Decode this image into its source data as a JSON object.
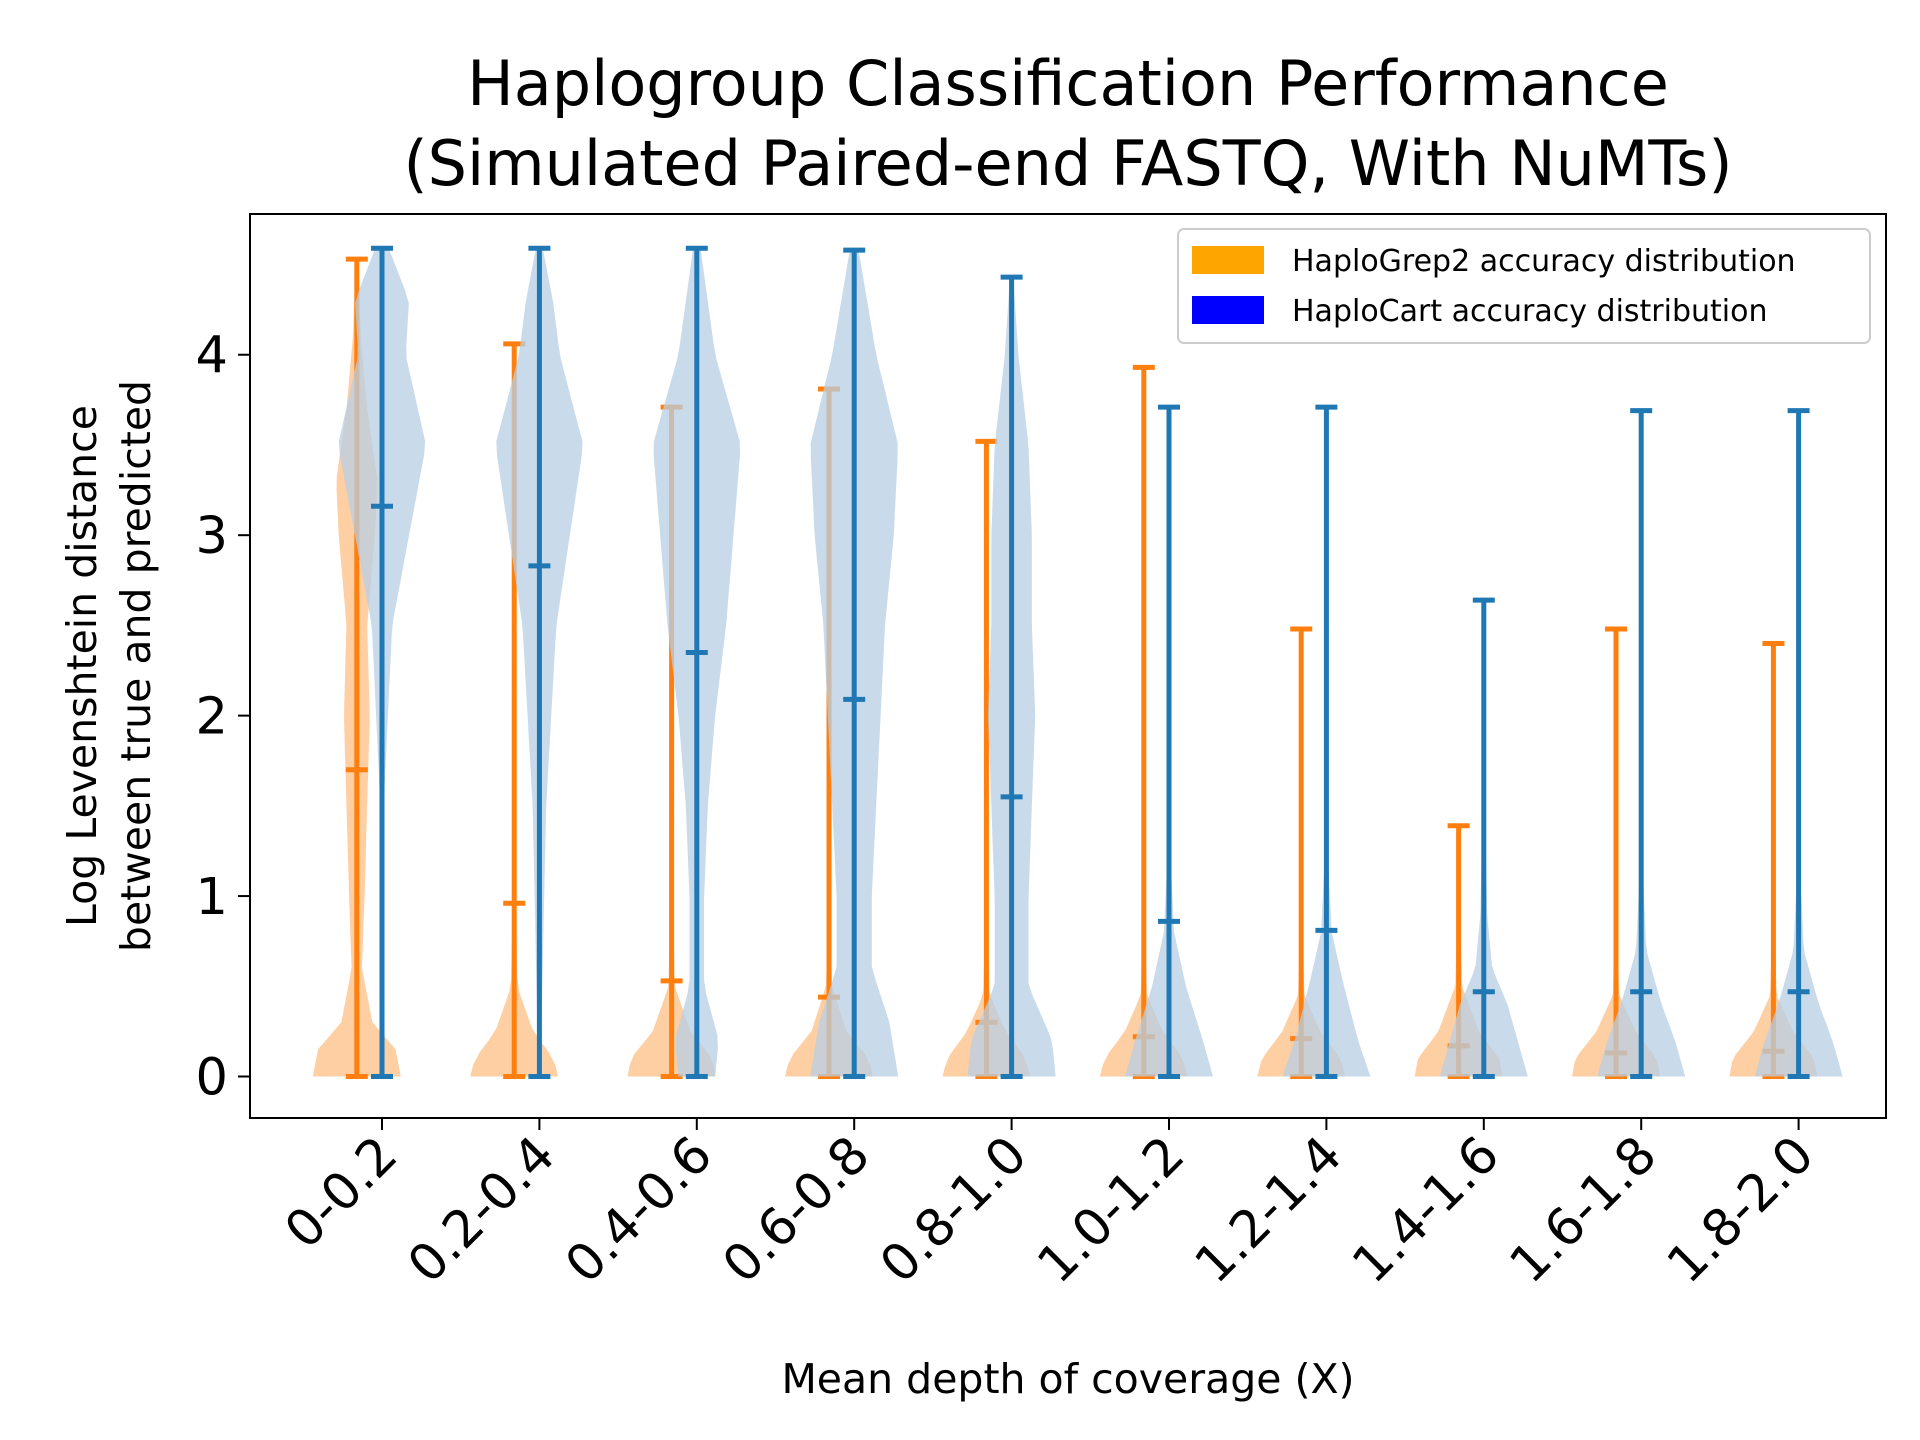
{
  "chart_data": {
    "type": "violin",
    "title": [
      "Haplogroup Classification Performance",
      "(Simulated Paired-end FASTQ, With NuMTs)"
    ],
    "xlabel": "Mean depth of coverage (X)",
    "ylabel": [
      "Log Levenshtein distance",
      "between true and predicted"
    ],
    "ylim": [
      -0.23,
      4.78
    ],
    "yticks": [
      0,
      1,
      2,
      3,
      4
    ],
    "categories": [
      "0-0.2",
      "0.2-0.4",
      "0.4-0.6",
      "0.6-0.8",
      "0.8-1.0",
      "1.0-1.2",
      "1.2-1.4",
      "1.4-1.6",
      "1.6-1.8",
      "1.8-2.0"
    ],
    "legend": {
      "position": "upper right",
      "entries": [
        {
          "label": "HaploGrep2 accuracy distribution",
          "color": "#ffa500"
        },
        {
          "label": "HaploCart accuracy distribution",
          "color": "#0000ff"
        }
      ]
    },
    "series": [
      {
        "name": "HaploGrep2",
        "line_color": "#ff7f0e",
        "fill_color": "#ffbf86",
        "offset": -0.25,
        "min": [
          0,
          0,
          0,
          0,
          0,
          0,
          0,
          0,
          0,
          0
        ],
        "max": [
          4.53,
          4.06,
          3.71,
          3.81,
          3.52,
          3.93,
          2.48,
          1.39,
          2.48,
          2.4
        ],
        "mean": [
          1.7,
          0.96,
          0.53,
          0.44,
          0.3,
          0.22,
          0.21,
          0.17,
          0.13,
          0.14
        ],
        "density_profiles": [
          [
            [
              0,
              0.17
            ],
            [
              0.15,
              0.15
            ],
            [
              0.3,
              0.06
            ],
            [
              0.6,
              0.02
            ],
            [
              1.0,
              0.03
            ],
            [
              1.5,
              0.04
            ],
            [
              2.0,
              0.05
            ],
            [
              2.5,
              0.04
            ],
            [
              3.0,
              0.07
            ],
            [
              3.3,
              0.08
            ],
            [
              3.7,
              0.04
            ],
            [
              4.1,
              0.015
            ],
            [
              4.53,
              0.004
            ]
          ],
          [
            [
              0,
              0.28
            ],
            [
              0.1,
              0.25
            ],
            [
              0.25,
              0.12
            ],
            [
              0.5,
              0.02
            ],
            [
              1.0,
              0.01
            ],
            [
              2.0,
              0.01
            ],
            [
              3.0,
              0.008
            ],
            [
              4.06,
              0.002
            ]
          ],
          [
            [
              0,
              0.28
            ],
            [
              0.1,
              0.26
            ],
            [
              0.25,
              0.12
            ],
            [
              0.5,
              0.02
            ],
            [
              1.0,
              0.008
            ],
            [
              2.0,
              0.006
            ],
            [
              3.0,
              0.005
            ],
            [
              3.71,
              0.002
            ]
          ],
          [
            [
              0,
              0.3
            ],
            [
              0.1,
              0.27
            ],
            [
              0.25,
              0.12
            ],
            [
              0.5,
              0.02
            ],
            [
              1.0,
              0.006
            ],
            [
              2.0,
              0.005
            ],
            [
              3.0,
              0.004
            ],
            [
              3.81,
              0.002
            ]
          ],
          [
            [
              0,
              0.27
            ],
            [
              0.1,
              0.24
            ],
            [
              0.25,
              0.12
            ],
            [
              0.45,
              0.02
            ],
            [
              1.0,
              0.004
            ],
            [
              2.0,
              0.003
            ],
            [
              3.52,
              0.001
            ]
          ],
          [
            [
              0,
              0.28
            ],
            [
              0.1,
              0.25
            ],
            [
              0.25,
              0.12
            ],
            [
              0.45,
              0.02
            ],
            [
              1.0,
              0.003
            ],
            [
              2.0,
              0.003
            ],
            [
              3.93,
              0.001
            ]
          ],
          [
            [
              0,
              0.28
            ],
            [
              0.1,
              0.25
            ],
            [
              0.25,
              0.12
            ],
            [
              0.45,
              0.02
            ],
            [
              1.0,
              0.003
            ],
            [
              2.48,
              0.001
            ]
          ],
          [
            [
              0,
              0.26
            ],
            [
              0.1,
              0.24
            ],
            [
              0.25,
              0.12
            ],
            [
              0.5,
              0.02
            ],
            [
              1.0,
              0.005
            ],
            [
              1.39,
              0.001
            ]
          ],
          [
            [
              0,
              0.27
            ],
            [
              0.1,
              0.25
            ],
            [
              0.25,
              0.12
            ],
            [
              0.45,
              0.02
            ],
            [
              1.0,
              0.003
            ],
            [
              2.48,
              0.001
            ]
          ],
          [
            [
              0,
              0.27
            ],
            [
              0.1,
              0.25
            ],
            [
              0.25,
              0.12
            ],
            [
              0.45,
              0.02
            ],
            [
              1.0,
              0.003
            ],
            [
              2.4,
              0.001
            ]
          ]
        ]
      },
      {
        "name": "HaploCart",
        "line_color": "#1f77b4",
        "fill_color": "#b7cfe4",
        "offset": 0.0,
        "min": [
          0,
          0,
          0,
          0,
          0,
          0,
          0,
          0,
          0,
          0
        ],
        "max": [
          4.59,
          4.59,
          4.59,
          4.58,
          4.43,
          3.71,
          3.71,
          2.64,
          3.69,
          3.69
        ],
        "mean": [
          3.16,
          2.83,
          2.35,
          2.09,
          1.55,
          0.86,
          0.81,
          0.47,
          0.47,
          0.47
        ],
        "density_profiles": [
          [
            [
              0,
              0.002
            ],
            [
              1.5,
              0.005
            ],
            [
              2.5,
              0.03
            ],
            [
              3.0,
              0.08
            ],
            [
              3.5,
              0.13
            ],
            [
              4.0,
              0.07
            ],
            [
              4.3,
              0.08
            ],
            [
              4.59,
              0.02
            ]
          ],
          [
            [
              0,
              0.003
            ],
            [
              1.5,
              0.02
            ],
            [
              2.5,
              0.05
            ],
            [
              3.0,
              0.09
            ],
            [
              3.5,
              0.13
            ],
            [
              4.0,
              0.06
            ],
            [
              4.3,
              0.04
            ],
            [
              4.59,
              0.01
            ]
          ],
          [
            [
              0,
              0.05
            ],
            [
              0.2,
              0.06
            ],
            [
              0.5,
              0.02
            ],
            [
              1.0,
              0.02
            ],
            [
              1.5,
              0.03
            ],
            [
              2.0,
              0.05
            ],
            [
              2.5,
              0.08
            ],
            [
              3.0,
              0.1
            ],
            [
              3.5,
              0.12
            ],
            [
              4.0,
              0.05
            ],
            [
              4.59,
              0.01
            ]
          ],
          [
            [
              0,
              0.1
            ],
            [
              0.3,
              0.08
            ],
            [
              0.6,
              0.04
            ],
            [
              1.0,
              0.04
            ],
            [
              1.5,
              0.05
            ],
            [
              2.0,
              0.06
            ],
            [
              2.5,
              0.07
            ],
            [
              3.0,
              0.09
            ],
            [
              3.5,
              0.1
            ],
            [
              4.0,
              0.05
            ],
            [
              4.58,
              0.01
            ]
          ],
          [
            [
              0,
              0.13
            ],
            [
              0.2,
              0.12
            ],
            [
              0.5,
              0.05
            ],
            [
              1.0,
              0.05
            ],
            [
              1.5,
              0.06
            ],
            [
              2.0,
              0.07
            ],
            [
              2.5,
              0.06
            ],
            [
              3.0,
              0.06
            ],
            [
              3.5,
              0.05
            ],
            [
              4.0,
              0.02
            ],
            [
              4.43,
              0.005
            ]
          ],
          [
            [
              0,
              0.26
            ],
            [
              0.2,
              0.2
            ],
            [
              0.5,
              0.1
            ],
            [
              0.8,
              0.03
            ],
            [
              1.2,
              0.01
            ],
            [
              2.0,
              0.006
            ],
            [
              3.0,
              0.004
            ],
            [
              3.71,
              0.002
            ]
          ],
          [
            [
              0,
              0.25
            ],
            [
              0.2,
              0.18
            ],
            [
              0.5,
              0.1
            ],
            [
              0.8,
              0.03
            ],
            [
              1.2,
              0.01
            ],
            [
              2.0,
              0.006
            ],
            [
              3.0,
              0.004
            ],
            [
              3.71,
              0.002
            ]
          ],
          [
            [
              0,
              0.26
            ],
            [
              0.2,
              0.2
            ],
            [
              0.4,
              0.14
            ],
            [
              0.6,
              0.05
            ],
            [
              0.9,
              0.02
            ],
            [
              1.5,
              0.008
            ],
            [
              2.64,
              0.002
            ]
          ],
          [
            [
              0,
              0.26
            ],
            [
              0.2,
              0.2
            ],
            [
              0.4,
              0.12
            ],
            [
              0.7,
              0.03
            ],
            [
              1.2,
              0.006
            ],
            [
              2.0,
              0.004
            ],
            [
              3.69,
              0.001
            ]
          ],
          [
            [
              0,
              0.26
            ],
            [
              0.2,
              0.2
            ],
            [
              0.4,
              0.12
            ],
            [
              0.7,
              0.03
            ],
            [
              1.2,
              0.006
            ],
            [
              2.0,
              0.004
            ],
            [
              3.69,
              0.001
            ]
          ]
        ]
      }
    ]
  }
}
